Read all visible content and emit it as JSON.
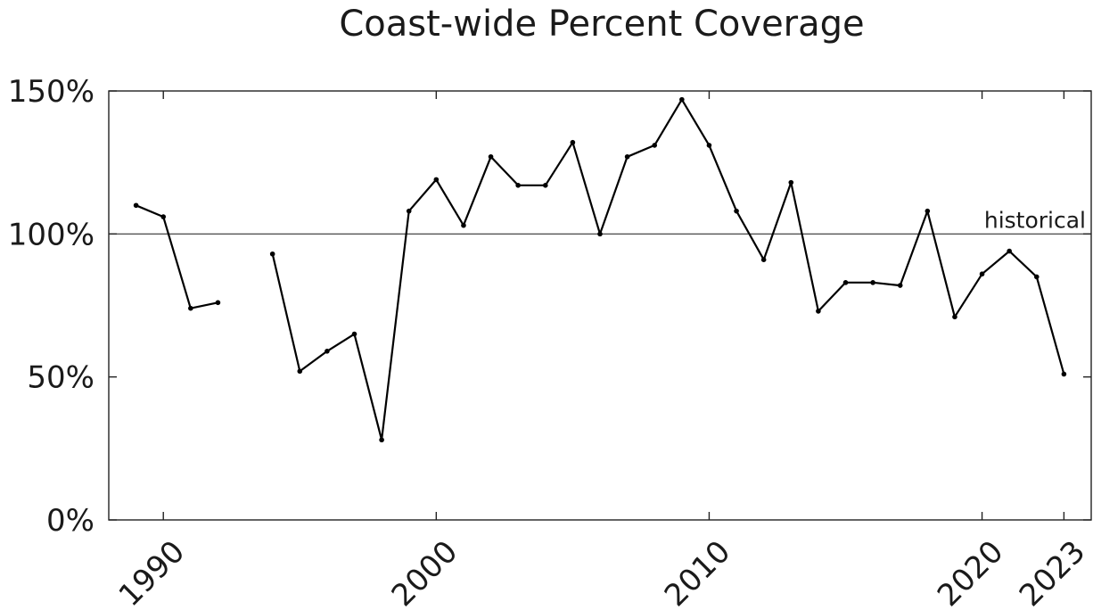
{
  "chart_data": {
    "type": "line",
    "title": "Coast-wide Percent Coverage",
    "xlabel": "",
    "ylabel": "",
    "xlim": [
      1988,
      2024
    ],
    "ylim": [
      0,
      150
    ],
    "x_ticks": [
      {
        "value": 1990,
        "label": "1990"
      },
      {
        "value": 2000,
        "label": "2000"
      },
      {
        "value": 2010,
        "label": "2010"
      },
      {
        "value": 2020,
        "label": "2020"
      },
      {
        "value": 2023,
        "label": "2023"
      }
    ],
    "y_ticks": [
      {
        "value": 0,
        "label": "0%"
      },
      {
        "value": 50,
        "label": "50%"
      },
      {
        "value": 100,
        "label": "100%"
      },
      {
        "value": 150,
        "label": "150%"
      }
    ],
    "reference_line": {
      "value": 100,
      "label": "historical"
    },
    "grid": false,
    "series": [
      {
        "points": [
          {
            "x": 1989,
            "y": 110
          },
          {
            "x": 1990,
            "y": 106
          },
          {
            "x": 1991,
            "y": 74
          },
          {
            "x": 1992,
            "y": 76
          },
          {
            "x": 1993,
            "y": null
          },
          {
            "x": 1994,
            "y": 93
          },
          {
            "x": 1995,
            "y": 52
          },
          {
            "x": 1996,
            "y": 59
          },
          {
            "x": 1997,
            "y": 65
          },
          {
            "x": 1998,
            "y": 28
          },
          {
            "x": 1999,
            "y": 108
          },
          {
            "x": 2000,
            "y": 119
          },
          {
            "x": 2001,
            "y": 103
          },
          {
            "x": 2002,
            "y": 127
          },
          {
            "x": 2003,
            "y": 117
          },
          {
            "x": 2004,
            "y": 117
          },
          {
            "x": 2005,
            "y": 132
          },
          {
            "x": 2006,
            "y": 100
          },
          {
            "x": 2007,
            "y": 127
          },
          {
            "x": 2008,
            "y": 131
          },
          {
            "x": 2009,
            "y": 147
          },
          {
            "x": 2010,
            "y": 131
          },
          {
            "x": 2011,
            "y": 108
          },
          {
            "x": 2012,
            "y": 91
          },
          {
            "x": 2013,
            "y": 118
          },
          {
            "x": 2014,
            "y": 73
          },
          {
            "x": 2015,
            "y": 83
          },
          {
            "x": 2016,
            "y": 83
          },
          {
            "x": 2017,
            "y": 82
          },
          {
            "x": 2018,
            "y": 108
          },
          {
            "x": 2019,
            "y": 71
          },
          {
            "x": 2020,
            "y": 86
          },
          {
            "x": 2021,
            "y": 94
          },
          {
            "x": 2022,
            "y": 85
          },
          {
            "x": 2023,
            "y": 51
          }
        ]
      }
    ]
  }
}
